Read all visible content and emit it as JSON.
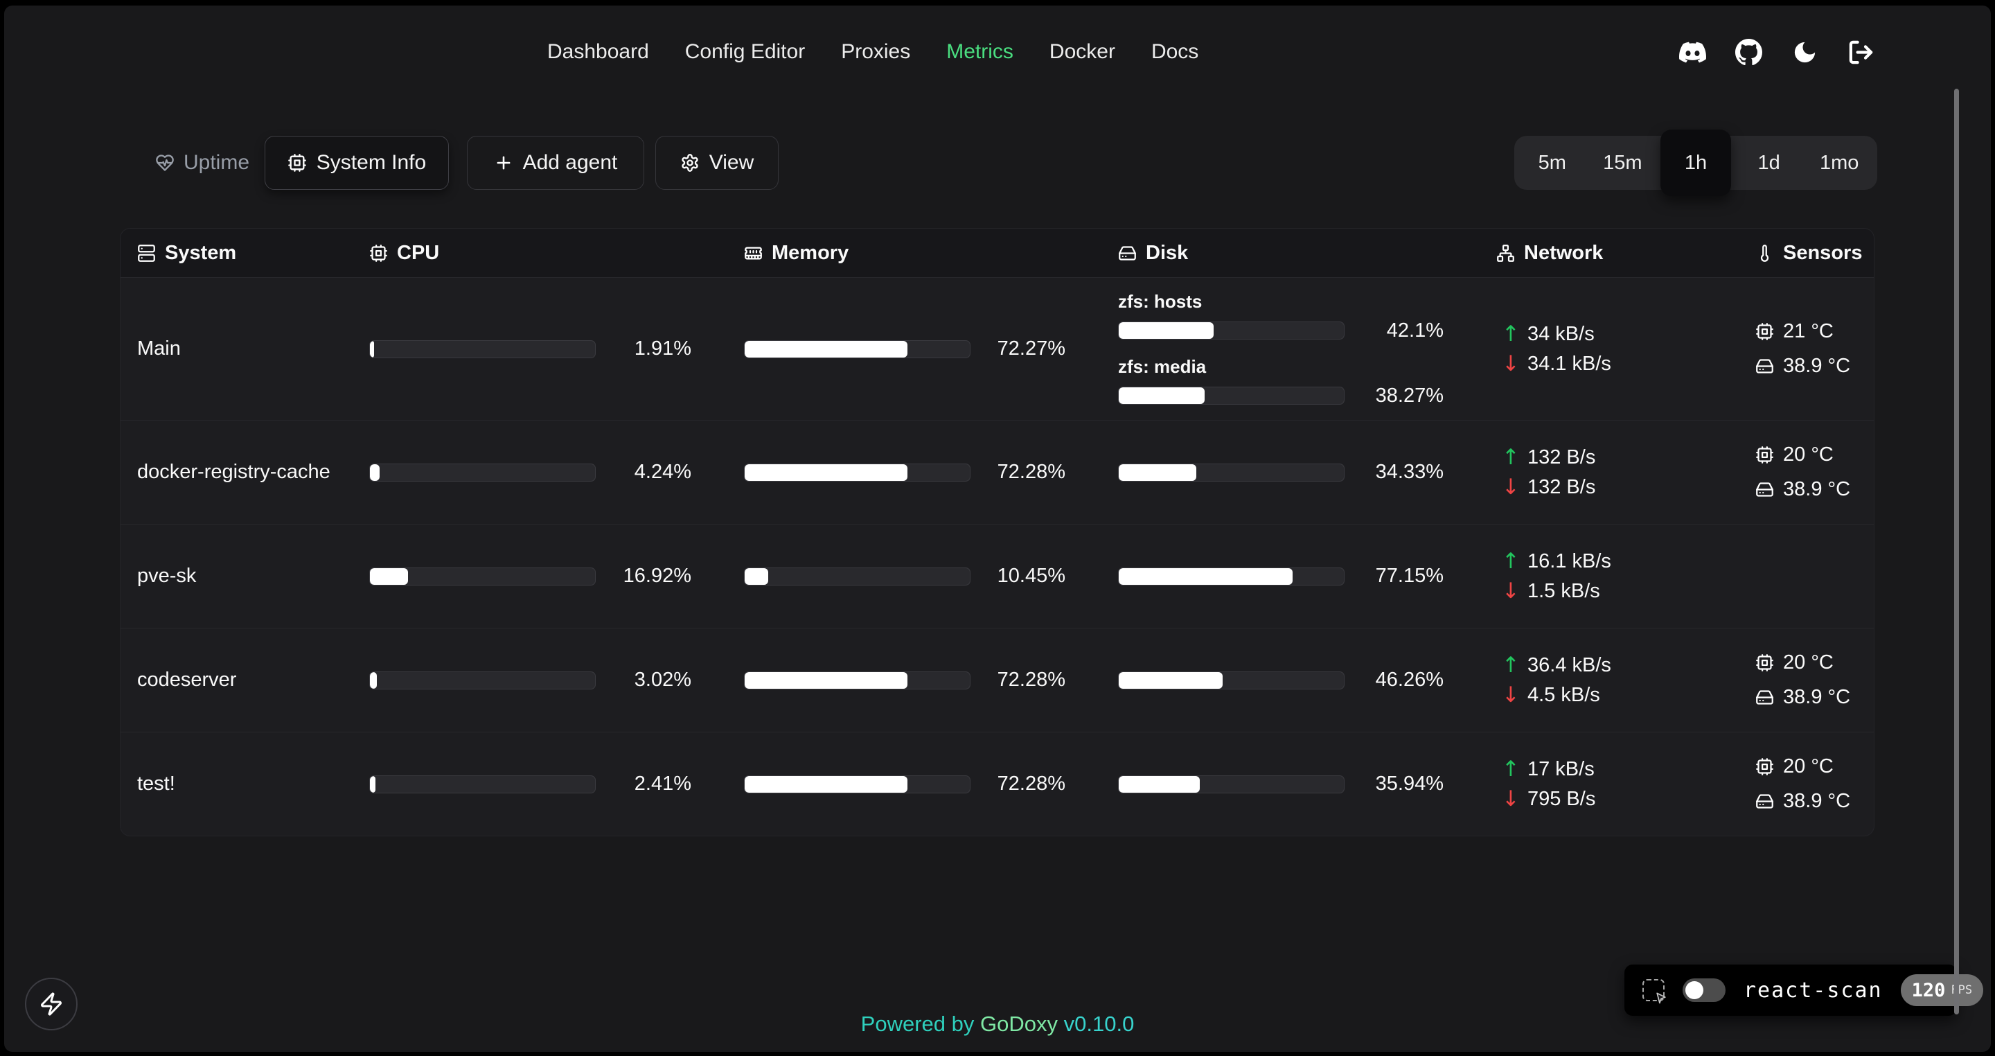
{
  "nav": {
    "items": [
      {
        "label": "Dashboard",
        "active": false
      },
      {
        "label": "Config Editor",
        "active": false
      },
      {
        "label": "Proxies",
        "active": false
      },
      {
        "label": "Metrics",
        "active": true
      },
      {
        "label": "Docker",
        "active": false
      },
      {
        "label": "Docs",
        "active": false
      }
    ]
  },
  "header_icons": [
    {
      "name": "discord"
    },
    {
      "name": "github"
    },
    {
      "name": "dark-mode-moon"
    },
    {
      "name": "logout"
    }
  ],
  "toolbar": {
    "uptime_label": "Uptime",
    "system_info_label": "System Info",
    "add_agent_label": "Add agent",
    "view_label": "View"
  },
  "time_range": {
    "options": [
      "5m",
      "15m",
      "1h",
      "1d",
      "1mo"
    ],
    "selected": "1h"
  },
  "table": {
    "columns": [
      "System",
      "CPU",
      "Memory",
      "Disk",
      "Network",
      "Sensors"
    ],
    "rows": [
      {
        "name": "Main",
        "cpu": {
          "percent": 1.91,
          "label": "1.91%"
        },
        "memory": {
          "percent": 72.27,
          "label": "72.27%"
        },
        "disks": [
          {
            "name": "zfs: hosts",
            "percent": 42.1,
            "label": "42.1%"
          },
          {
            "name": "zfs: media",
            "percent": 38.27,
            "label": "38.27%"
          }
        ],
        "network": {
          "upload": "34 kB/s",
          "download": "34.1 kB/s"
        },
        "sensors": {
          "cpu_temp": "21 °C",
          "disk_temp": "38.9 °C"
        }
      },
      {
        "name": "docker-registry-cache",
        "cpu": {
          "percent": 4.24,
          "label": "4.24%"
        },
        "memory": {
          "percent": 72.28,
          "label": "72.28%"
        },
        "disks": [
          {
            "name": "",
            "percent": 34.33,
            "label": "34.33%"
          }
        ],
        "network": {
          "upload": "132 B/s",
          "download": "132 B/s"
        },
        "sensors": {
          "cpu_temp": "20 °C",
          "disk_temp": "38.9 °C"
        }
      },
      {
        "name": "pve-sk",
        "cpu": {
          "percent": 16.92,
          "label": "16.92%"
        },
        "memory": {
          "percent": 10.45,
          "label": "10.45%"
        },
        "disks": [
          {
            "name": "",
            "percent": 77.15,
            "label": "77.15%"
          }
        ],
        "network": {
          "upload": "16.1 kB/s",
          "download": "1.5 kB/s"
        },
        "sensors": null
      },
      {
        "name": "codeserver",
        "cpu": {
          "percent": 3.02,
          "label": "3.02%"
        },
        "memory": {
          "percent": 72.28,
          "label": "72.28%"
        },
        "disks": [
          {
            "name": "",
            "percent": 46.26,
            "label": "46.26%"
          }
        ],
        "network": {
          "upload": "36.4 kB/s",
          "download": "4.5 kB/s"
        },
        "sensors": {
          "cpu_temp": "20 °C",
          "disk_temp": "38.9 °C"
        }
      },
      {
        "name": "test!",
        "cpu": {
          "percent": 2.41,
          "label": "2.41%"
        },
        "memory": {
          "percent": 72.28,
          "label": "72.28%"
        },
        "disks": [
          {
            "name": "",
            "percent": 35.94,
            "label": "35.94%"
          }
        ],
        "network": {
          "upload": "17 kB/s",
          "download": "795 B/s"
        },
        "sensors": {
          "cpu_temp": "20 °C",
          "disk_temp": "38.9 °C"
        }
      }
    ]
  },
  "footer": {
    "powered_by": "Powered by",
    "brand": "GoDoxy",
    "version": "v0.10.0"
  },
  "react_scan": {
    "label": "react-scan",
    "fps": "120",
    "fps_unit": "FPS",
    "enabled": false
  },
  "colors": {
    "page_bg": "#19191b",
    "accent_green": "#4ade80",
    "upload_green": "#22c55e",
    "download_red": "#ef4444",
    "bar_fill": "#ffffff",
    "brand_teal": "#2fd0bd",
    "brand_green": "#7fe7a4"
  }
}
